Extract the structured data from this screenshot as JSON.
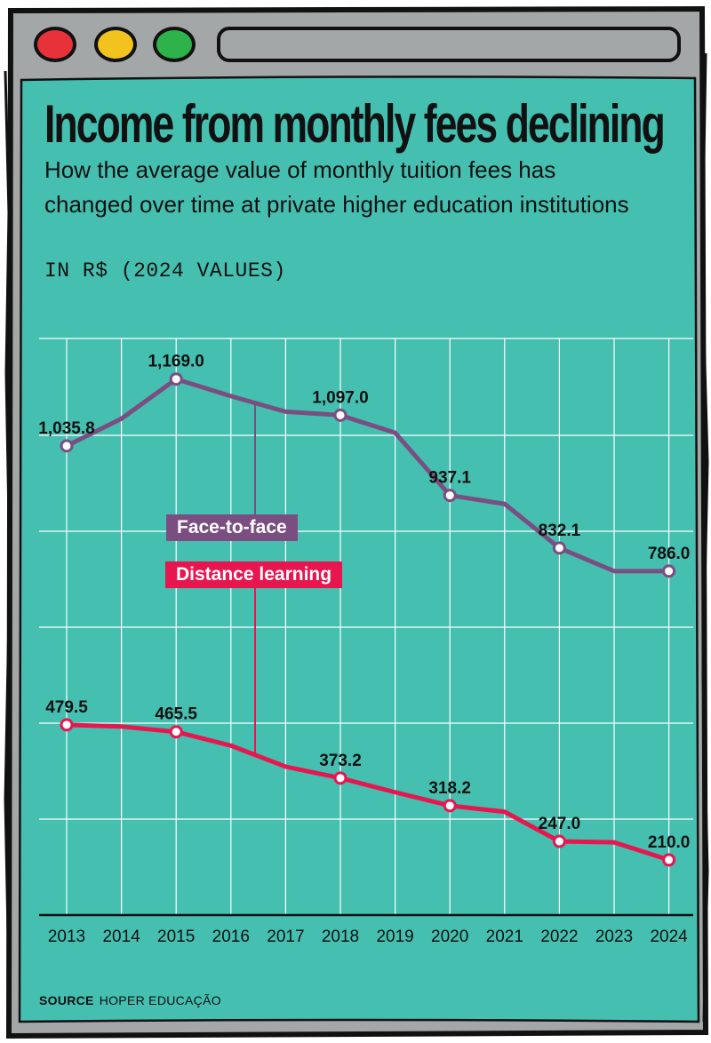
{
  "header": {
    "title": "Income from monthly fees declining",
    "subtitle": "How the average value of monthly tuition fees has changed over time at private higher education institutions",
    "unit": "IN R$ (2024 VALUES)"
  },
  "footer": {
    "source_label": "SOURCE",
    "source_value": "HOPER EDUCAÇÃO"
  },
  "colors": {
    "background": "#45bfb0",
    "frame": "#a4a7a7",
    "face_to_face": "#7b4e82",
    "distance_learning": "#e8164f",
    "grid": "#ffffff",
    "window_buttons": [
      "#e8323a",
      "#f2c31e",
      "#2db34a"
    ]
  },
  "chart_data": {
    "type": "line",
    "title": "Income from monthly fees declining",
    "x": [
      "2013",
      "2014",
      "2015",
      "2016",
      "2017",
      "2018",
      "2019",
      "2020",
      "2021",
      "2022",
      "2023",
      "2024"
    ],
    "ylim": [
      100,
      1250
    ],
    "grid": true,
    "legend_placement": "inline",
    "series": [
      {
        "name": "Face-to-face",
        "color": "#7b4e82",
        "values": [
          1035.8,
          1090,
          1169.0,
          1135,
          1104,
          1097.0,
          1062,
          937.1,
          920,
          832.1,
          786,
          786.0
        ],
        "labels": [
          "1,035.8",
          "",
          "1,169.0",
          "",
          "",
          "1,097.0",
          "",
          "937.1",
          "",
          "832.1",
          "",
          "786.0"
        ]
      },
      {
        "name": "Distance learning",
        "color": "#e8164f",
        "values": [
          479.5,
          476,
          465.5,
          438,
          396,
          373.2,
          345,
          318.2,
          306,
          247.0,
          245,
          210.0
        ],
        "labels": [
          "479.5",
          "",
          "465.5",
          "",
          "",
          "373.2",
          "",
          "318.2",
          "",
          "247.0",
          "",
          "210.0"
        ]
      }
    ]
  }
}
